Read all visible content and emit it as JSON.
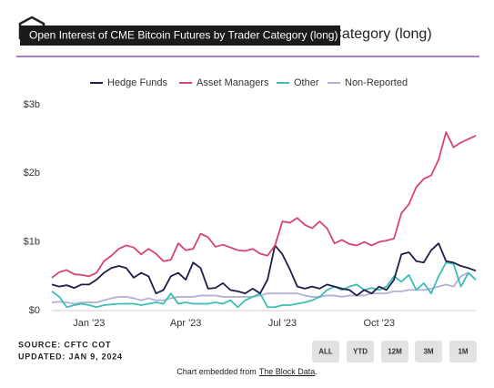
{
  "chart_data": {
    "type": "line",
    "title": "Open Interest of CME Bitcoin Futures by Trader Category (long)",
    "categories": [
      null,
      null,
      null,
      null,
      null,
      "Jan '23",
      null,
      null,
      null,
      null,
      null,
      null,
      null,
      null,
      null,
      null,
      null,
      null,
      "Apr '23",
      null,
      null,
      null,
      null,
      null,
      null,
      null,
      null,
      null,
      null,
      null,
      null,
      "Jul '23",
      null,
      null,
      null,
      null,
      null,
      null,
      null,
      null,
      null,
      null,
      null,
      null,
      "Oct '23",
      null,
      null,
      null,
      null,
      null,
      null,
      null,
      null,
      null,
      null,
      null,
      null,
      null
    ],
    "series": [
      {
        "name": "Hedge Funds",
        "color": "#1f1d4a",
        "values": [
          0.38,
          0.35,
          0.37,
          0.33,
          0.38,
          0.38,
          0.45,
          0.55,
          0.62,
          0.65,
          0.62,
          0.48,
          0.55,
          0.5,
          0.25,
          0.3,
          0.5,
          0.55,
          0.45,
          0.7,
          0.62,
          0.32,
          0.33,
          0.4,
          0.3,
          0.28,
          0.25,
          0.32,
          0.25,
          0.45,
          0.95,
          0.82,
          0.6,
          0.35,
          0.32,
          0.35,
          0.32,
          0.38,
          0.35,
          0.32,
          0.3,
          0.22,
          0.3,
          0.25,
          0.35,
          0.3,
          0.45,
          0.82,
          0.85,
          0.72,
          0.7,
          0.88,
          0.98,
          0.72,
          0.7,
          0.65,
          0.62,
          0.58
        ]
      },
      {
        "name": "Asset Managers",
        "color": "#d6456e",
        "values": [
          0.48,
          0.56,
          0.59,
          0.53,
          0.52,
          0.5,
          0.55,
          0.72,
          0.8,
          0.9,
          0.95,
          0.92,
          0.82,
          0.9,
          0.83,
          0.72,
          0.74,
          0.98,
          0.88,
          0.9,
          1.12,
          1.07,
          0.93,
          0.96,
          0.92,
          0.88,
          0.87,
          0.9,
          0.83,
          0.8,
          0.95,
          1.3,
          1.28,
          1.35,
          1.25,
          1.2,
          1.3,
          1.2,
          0.98,
          1.03,
          0.97,
          0.95,
          1.0,
          0.95,
          1.0,
          1.02,
          1.05,
          1.42,
          1.55,
          1.8,
          1.92,
          1.97,
          2.2,
          2.6,
          2.38,
          2.45,
          2.5,
          2.55
        ]
      },
      {
        "name": "Other",
        "color": "#3bbfb5",
        "values": [
          0.28,
          0.2,
          0.05,
          0.08,
          0.1,
          0.08,
          0.05,
          0.08,
          0.09,
          0.1,
          0.1,
          0.1,
          0.08,
          0.1,
          0.12,
          0.1,
          0.25,
          0.1,
          0.12,
          0.1,
          0.1,
          0.1,
          0.12,
          0.1,
          0.15,
          0.05,
          0.15,
          0.2,
          0.25,
          0.05,
          0.05,
          0.08,
          0.08,
          0.1,
          0.12,
          0.15,
          0.2,
          0.3,
          0.35,
          0.3,
          0.35,
          0.38,
          0.3,
          0.33,
          0.3,
          0.35,
          0.5,
          0.42,
          0.52,
          0.3,
          0.4,
          0.25,
          0.5,
          0.7,
          0.68,
          0.35,
          0.55,
          0.45
        ]
      },
      {
        "name": "Non-Reported",
        "color": "#b5b0d6",
        "values": [
          0.12,
          0.13,
          0.12,
          0.1,
          0.12,
          0.12,
          0.12,
          0.15,
          0.18,
          0.2,
          0.2,
          0.18,
          0.15,
          0.18,
          0.15,
          0.15,
          0.18,
          0.2,
          0.2,
          0.2,
          0.22,
          0.22,
          0.22,
          0.2,
          0.2,
          0.2,
          0.2,
          0.2,
          0.22,
          0.25,
          0.25,
          0.25,
          0.25,
          0.25,
          0.22,
          0.2,
          0.2,
          0.22,
          0.22,
          0.2,
          0.22,
          0.22,
          0.22,
          0.25,
          0.25,
          0.25,
          0.28,
          0.28,
          0.3,
          0.3,
          0.3,
          0.32,
          0.35,
          0.38,
          0.35,
          0.5,
          0.55,
          0.45
        ]
      }
    ],
    "ylim": [
      0,
      3
    ],
    "yticks": [
      {
        "value": 0,
        "label": "$0"
      },
      {
        "value": 1,
        "label": "$1b"
      },
      {
        "value": 2,
        "label": "$2b"
      },
      {
        "value": 3,
        "label": "$3b"
      }
    ],
    "grid": false,
    "legend": "top",
    "source": "SOURCE: CFTC COT",
    "updated": "UPDATED: JAN 9, 2024",
    "buttons": [
      "ALL",
      "YTD",
      "12M",
      "3M",
      "1M"
    ],
    "footer": {
      "prefix": "Chart embedded from",
      "link": "The Block Data",
      "suffix": "."
    }
  }
}
